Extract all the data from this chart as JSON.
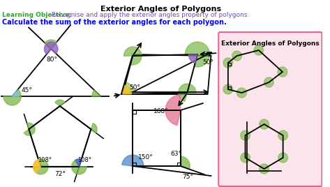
{
  "title": "Exterior Angles of Polygons",
  "lo_label": "Learning Objective:",
  "lo_text": " Recognise and apply the exterior angles property of polygons.",
  "instruction": "Calculate the sum of the exterior angles for each polygon.",
  "bg_color": "#ffffff",
  "box_bg": "#fce4ec",
  "box_border": "#f06090",
  "box_title": "Exterior Angles of Polygons",
  "light_green": "#7ab648",
  "yellow": "#f0c030",
  "purple": "#9060bb",
  "blue": "#4080c0",
  "pink": "#e07090",
  "dark": "#222222"
}
